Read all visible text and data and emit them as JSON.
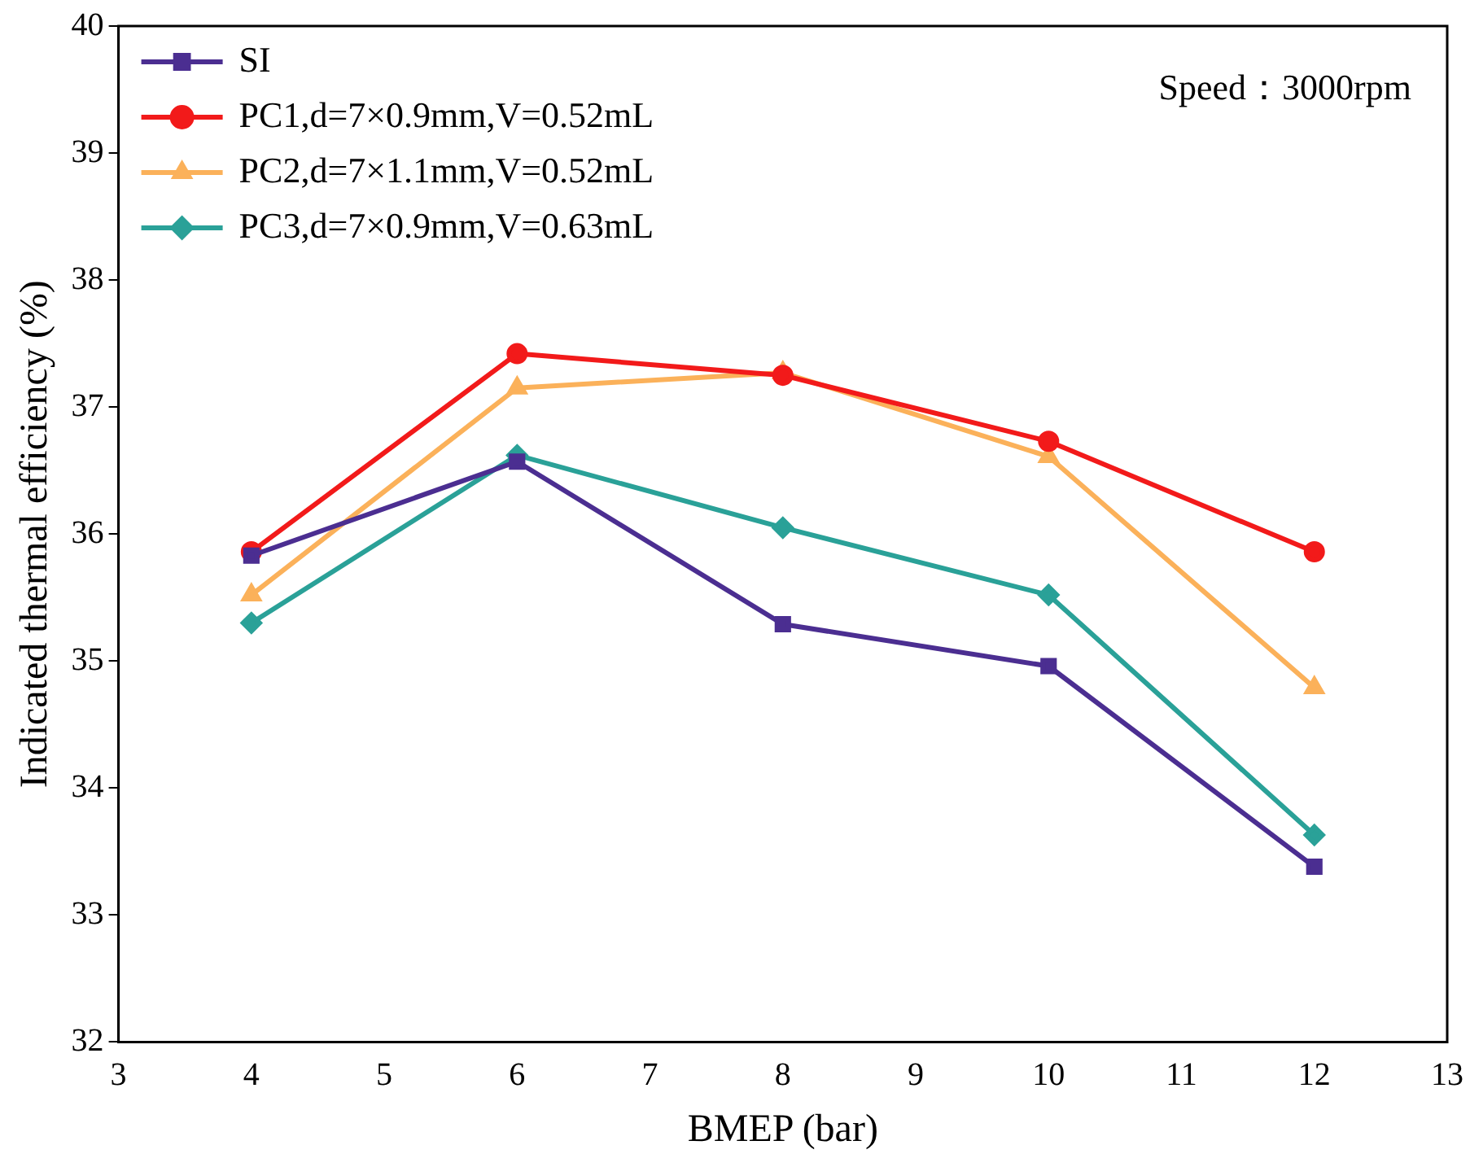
{
  "chart_data": {
    "type": "line",
    "xlabel": "BMEP (bar)",
    "ylabel": "Indicated thermal efficiency (%)",
    "xlim": [
      3,
      13
    ],
    "xticks": [
      3,
      4,
      5,
      6,
      7,
      8,
      9,
      10,
      11,
      12,
      13
    ],
    "ylim": [
      32,
      40
    ],
    "yticks": [
      32,
      33,
      34,
      35,
      36,
      37,
      38,
      39,
      40
    ],
    "grid": false,
    "legend": "top left",
    "line_style": "solid",
    "annotations": [
      "Speed：3000rpm"
    ],
    "series": [
      {
        "name": "SI",
        "color": "#4b2e91",
        "marker": "square",
        "x": [
          4,
          6,
          8,
          10,
          12
        ],
        "values": [
          35.83,
          36.57,
          35.29,
          34.96,
          33.38
        ]
      },
      {
        "name": "PC1,d=7×0.9mm,V=0.52mL",
        "color": "#f21a1a",
        "marker": "circle",
        "x": [
          4,
          6,
          8,
          10,
          12
        ],
        "values": [
          35.86,
          37.42,
          37.25,
          36.73,
          35.86
        ]
      },
      {
        "name": "PC2,d=7×1.1mm,V=0.52mL",
        "color": "#fbb15a",
        "marker": "triangle",
        "x": [
          4,
          6,
          8,
          10,
          12
        ],
        "values": [
          35.52,
          37.15,
          37.27,
          36.61,
          34.79
        ]
      },
      {
        "name": "PC3,d=7×0.9mm,V=0.63mL",
        "color": "#2aa198",
        "marker": "diamond",
        "x": [
          4,
          6,
          8,
          10,
          12
        ],
        "values": [
          35.3,
          36.62,
          36.05,
          35.52,
          33.63
        ]
      }
    ]
  }
}
